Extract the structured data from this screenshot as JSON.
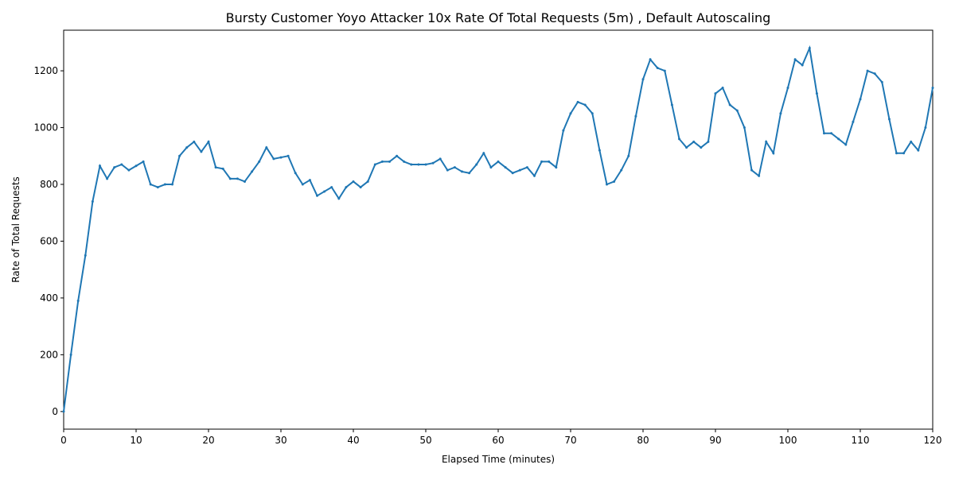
{
  "chart_data": {
    "type": "line",
    "title": "Bursty Customer Yoyo Attacker 10x Rate Of Total Requests (5m) , Default Autoscaling",
    "x_label": "Elapsed Time (minutes)",
    "y_label": "Rate of Total Requests",
    "x": [
      0,
      1,
      2,
      3,
      4,
      5,
      6,
      7,
      8,
      9,
      10,
      11,
      12,
      13,
      14,
      15,
      16,
      17,
      18,
      19,
      20,
      21,
      22,
      23,
      24,
      25,
      26,
      27,
      28,
      29,
      30,
      31,
      32,
      33,
      34,
      35,
      36,
      37,
      38,
      39,
      40,
      41,
      42,
      43,
      44,
      45,
      46,
      47,
      48,
      49,
      50,
      51,
      52,
      53,
      54,
      55,
      56,
      57,
      58,
      59,
      60,
      61,
      62,
      63,
      64,
      65,
      66,
      67,
      68,
      69,
      70,
      71,
      72,
      73,
      74,
      75,
      76,
      77,
      78,
      79,
      80,
      81,
      82,
      83,
      84,
      85,
      86,
      87,
      88,
      89,
      90,
      91,
      92,
      93,
      94,
      95,
      96,
      97,
      98,
      99,
      100,
      101,
      102,
      103,
      104,
      105,
      106,
      107,
      108,
      109,
      110,
      111,
      112,
      113,
      114,
      115,
      116,
      117,
      118,
      119,
      120
    ],
    "series": [
      {
        "name": "Rate of Total Requests",
        "color": "#1f77b4",
        "values": [
          0,
          200,
          390,
          550,
          740,
          865,
          820,
          860,
          870,
          850,
          865,
          880,
          800,
          790,
          800,
          800,
          900,
          930,
          950,
          915,
          950,
          860,
          855,
          820,
          820,
          810,
          845,
          880,
          930,
          890,
          895,
          900,
          840,
          800,
          815,
          760,
          775,
          790,
          750,
          790,
          810,
          790,
          810,
          870,
          880,
          880,
          900,
          880,
          870,
          870,
          870,
          875,
          890,
          850,
          860,
          845,
          840,
          870,
          910,
          860,
          880,
          860,
          840,
          850,
          860,
          830,
          880,
          880,
          860,
          990,
          1050,
          1090,
          1080,
          1050,
          920,
          800,
          810,
          850,
          900,
          1040,
          1170,
          1240,
          1210,
          1200,
          1080,
          960,
          930,
          950,
          930,
          950,
          1120,
          1140,
          1080,
          1060,
          1000,
          850,
          830,
          950,
          910,
          1050,
          1140,
          1240,
          1220,
          1280,
          1120,
          980,
          980,
          960,
          940,
          1020,
          1100,
          1200,
          1190,
          1160,
          1030,
          910,
          910,
          950,
          920,
          1000,
          1140
        ]
      }
    ],
    "xlim": [
      0,
      120
    ],
    "ylim": [
      -62,
      1343
    ],
    "xticks": [
      0,
      10,
      20,
      30,
      40,
      50,
      60,
      70,
      80,
      90,
      100,
      110,
      120
    ],
    "yticks": [
      0,
      200,
      400,
      600,
      800,
      1000,
      1200
    ]
  }
}
